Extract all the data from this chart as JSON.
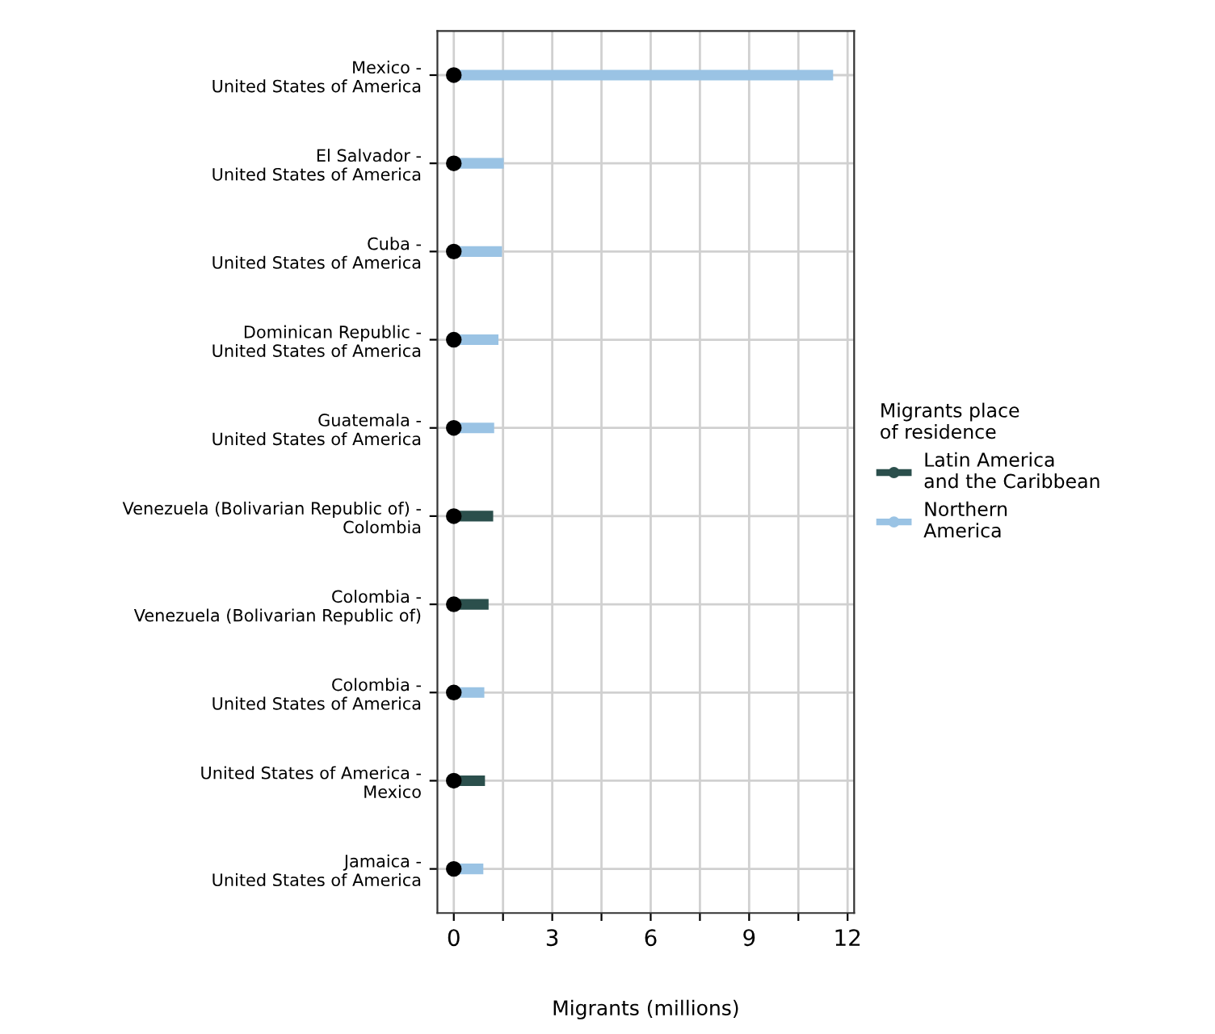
{
  "chart_data": {
    "type": "bar",
    "orientation": "horizontal",
    "xlabel": "Migrants (millions)",
    "legend_title": "Migrants place\nof residence",
    "categories": [
      "Mexico -\nUnited States of America",
      "El Salvador -\nUnited States of America",
      "Cuba -\nUnited States of America",
      "Dominican Republic -\nUnited States of America",
      "Guatemala -\nUnited States of America",
      "Venezuela (Bolivarian Republic of) -\nColombia",
      "Colombia -\nVenezuela (Bolivarian Republic of)",
      "Colombia -\nUnited States of America",
      "United States of America -\nMexico",
      "Jamaica -\nUnited States of America"
    ],
    "series": [
      {
        "name": "Latin America\nand the Caribbean",
        "color": "#2b4f4c",
        "values": [
          null,
          null,
          null,
          null,
          null,
          1.2,
          1.06,
          null,
          0.95,
          null
        ]
      },
      {
        "name": "Northern\nAmerica",
        "color": "#9ac3e4",
        "values": [
          11.56,
          1.52,
          1.47,
          1.36,
          1.23,
          null,
          null,
          0.93,
          null,
          0.9
        ]
      },
      {
        "type": "scatter",
        "color": "#000000",
        "values": [
          0,
          0,
          0,
          0,
          0,
          0,
          0,
          0,
          0,
          0
        ]
      }
    ],
    "xlim": [
      -0.5,
      12.2
    ],
    "xticks": [
      0,
      {
        "value": 1.5,
        "label": null
      },
      3,
      {
        "value": 4.5,
        "label": null
      },
      6,
      {
        "value": 7.5,
        "label": null
      },
      9,
      {
        "value": 10.5,
        "label": null
      },
      12
    ],
    "grid": true,
    "legend": "right",
    "marker": "circle"
  }
}
